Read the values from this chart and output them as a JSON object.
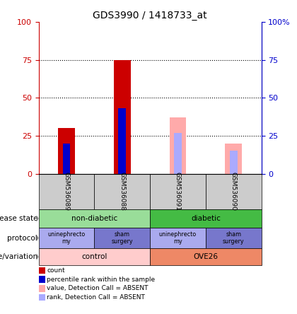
{
  "title": "GDS3990 / 1418733_at",
  "samples": [
    "GSM536089",
    "GSM536088",
    "GSM536091",
    "GSM536090"
  ],
  "count_values": [
    30,
    75,
    0,
    0
  ],
  "percentile_values": [
    20,
    43,
    0,
    0
  ],
  "absent_value_values": [
    0,
    0,
    37,
    20
  ],
  "absent_rank_values": [
    0,
    0,
    27,
    15
  ],
  "ylim": [
    0,
    100
  ],
  "left_yticks": [
    0,
    25,
    50,
    75,
    100
  ],
  "right_yticks": [
    0,
    25,
    50,
    75,
    100
  ],
  "bar_width": 0.3,
  "color_count": "#cc0000",
  "color_percentile": "#0000cc",
  "color_absent_value": "#ffaaaa",
  "color_absent_rank": "#aaaaff",
  "disease_state": [
    {
      "label": "non-diabetic",
      "span": [
        0,
        2
      ],
      "color": "#99dd99"
    },
    {
      "label": "diabetic",
      "span": [
        2,
        4
      ],
      "color": "#44bb44"
    }
  ],
  "protocol": [
    {
      "label": "uninephrecto\nmy",
      "span": [
        0,
        1
      ],
      "color": "#aaaaee"
    },
    {
      "label": "sham\nsurgery",
      "span": [
        1,
        2
      ],
      "color": "#7777cc"
    },
    {
      "label": "uninephrecto\nmy",
      "span": [
        2,
        3
      ],
      "color": "#aaaaee"
    },
    {
      "label": "sham\nsurgery",
      "span": [
        3,
        4
      ],
      "color": "#7777cc"
    }
  ],
  "genotype": [
    {
      "label": "control",
      "span": [
        0,
        2
      ],
      "color": "#ffcccc"
    },
    {
      "label": "OVE26",
      "span": [
        2,
        4
      ],
      "color": "#ee8866"
    }
  ],
  "row_labels": [
    "disease state",
    "protocol",
    "genotype/variation"
  ],
  "legend_items": [
    {
      "label": "count",
      "color": "#cc0000"
    },
    {
      "label": "percentile rank within the sample",
      "color": "#0000cc"
    },
    {
      "label": "value, Detection Call = ABSENT",
      "color": "#ffaaaa"
    },
    {
      "label": "rank, Detection Call = ABSENT",
      "color": "#aaaaff"
    }
  ],
  "bg_color": "#ffffff",
  "plot_bg": "#ffffff",
  "tick_label_color_left": "#cc0000",
  "tick_label_color_right": "#0000cc",
  "sample_box_color": "#cccccc"
}
